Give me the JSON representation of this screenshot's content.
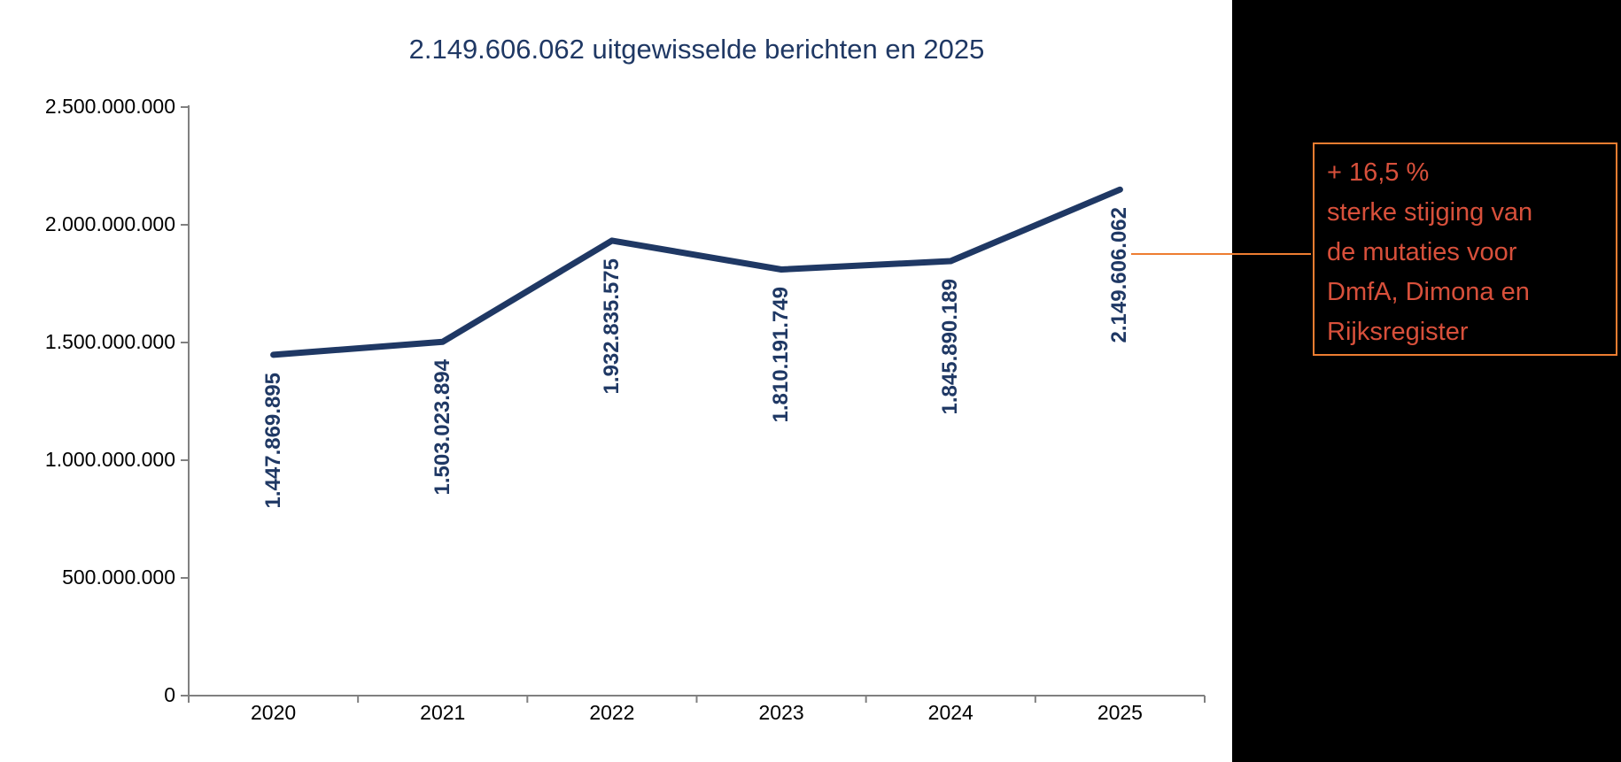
{
  "title_bar": {
    "chart_title": "2.149.606.062 uitgewisselde berichten en 2025"
  },
  "chart_data": {
    "type": "line",
    "title": "2.149.606.062 uitgewisselde berichten en 2025",
    "categories": [
      "2020",
      "2021",
      "2022",
      "2023",
      "2024",
      "2025"
    ],
    "values": [
      1447869895,
      1503023894,
      1932835575,
      1810191749,
      1845890189,
      2149606062
    ],
    "data_labels": [
      "1.447.869.895",
      "1.503.023.894",
      "1.932.835.575",
      "1.810.191.749",
      "1.845.890.189",
      "2.149.606.062"
    ],
    "series_name": "uitgewisselde berichten",
    "xlabel": "",
    "ylabel": "",
    "ylim": [
      0,
      2500000000
    ],
    "yticks": [
      2500000000,
      2000000000,
      1500000000,
      1000000000,
      500000000,
      0
    ],
    "ytick_labels": [
      "2.500.000.000",
      "2.000.000.000",
      "1.500.000.000",
      "1.000.000.000",
      "500.000.000",
      "0"
    ],
    "grid": false,
    "legend": false,
    "data_label_rotation": 90
  },
  "annotation": {
    "lines": [
      "+ 16,5 %",
      "sterke stijging van",
      "de mutaties voor",
      "DmfA, Dimona en",
      "Rijksregister"
    ]
  },
  "colors": {
    "navy": "#1F3864",
    "axis": "#808080",
    "tick_label": "#000000",
    "annotation_text": "#D8503B",
    "annotation_border": "#ED7D31",
    "connector": "#ED7D31",
    "panel_bg": "#000000"
  }
}
